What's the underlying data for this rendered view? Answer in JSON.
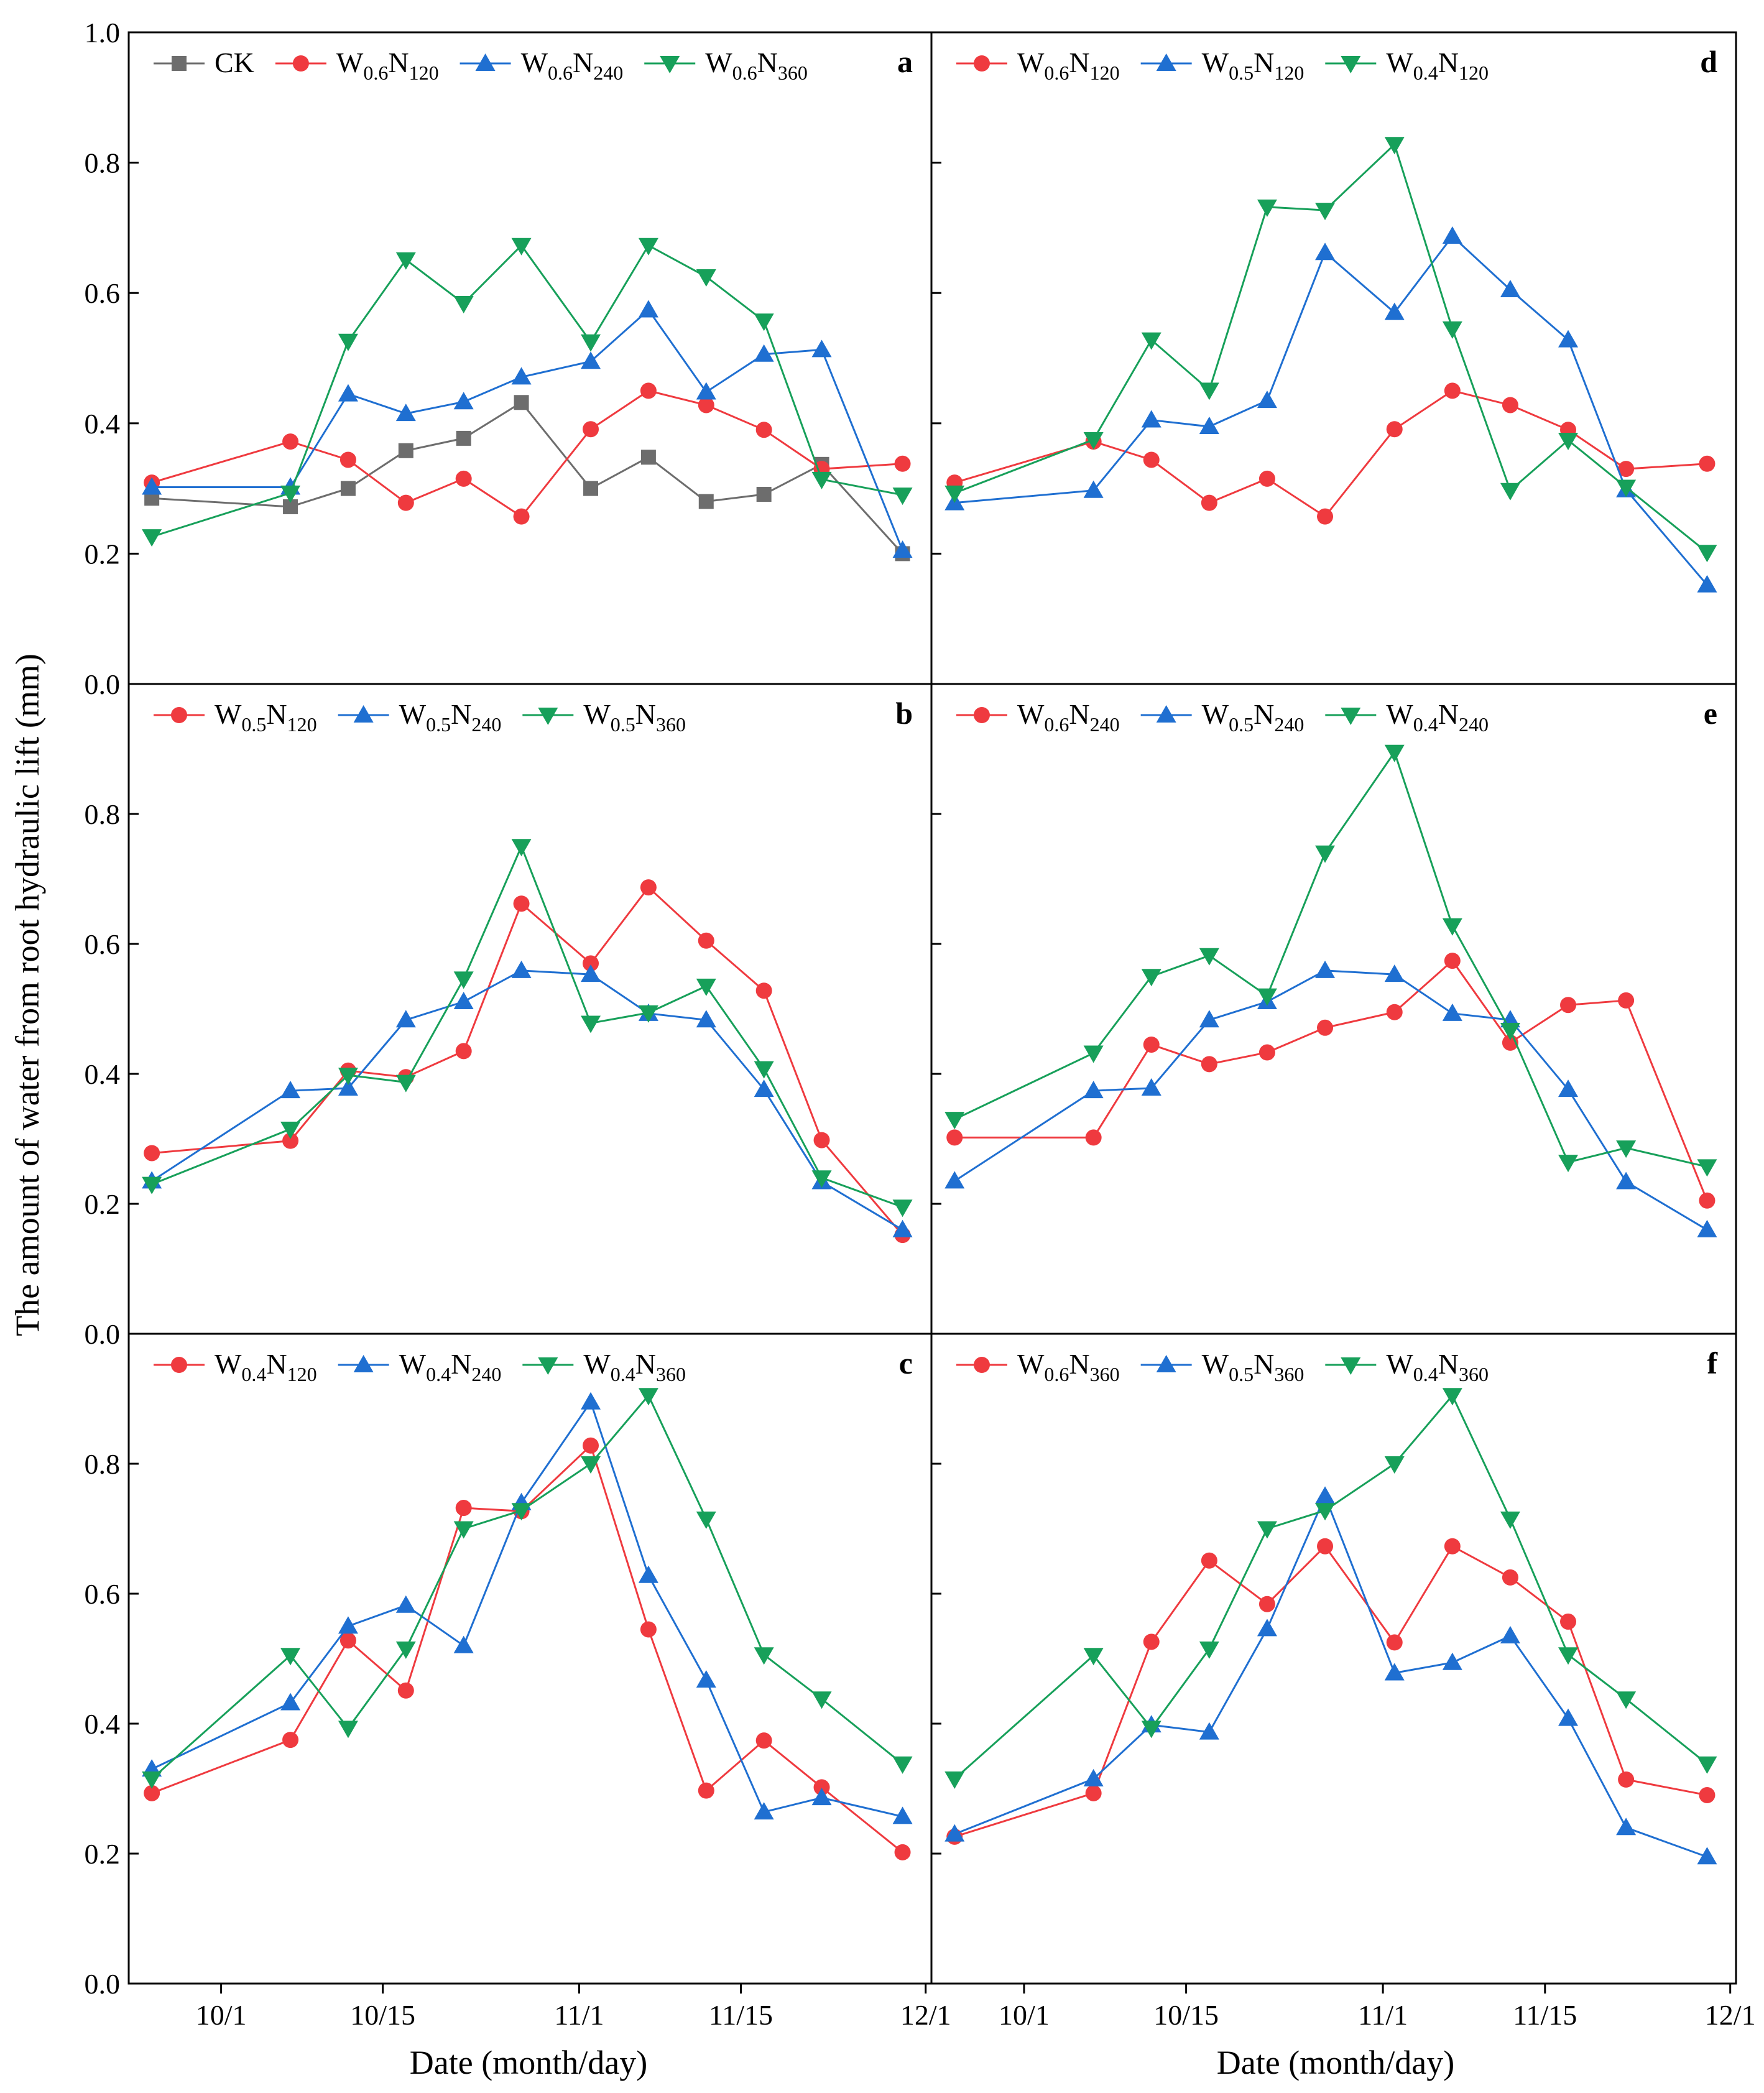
{
  "figure": {
    "ylabel": "The amount of water from root hydraulic lift (mm)",
    "xlabel": "Date (month/day)",
    "y_ticks": [
      "0.0",
      "0.2",
      "0.4",
      "0.6",
      "0.8",
      "1.0"
    ],
    "x_ticks": [
      {
        "label": "10/1",
        "day": 1
      },
      {
        "label": "10/15",
        "day": 15
      },
      {
        "label": "11/1",
        "day": 32
      },
      {
        "label": "11/15",
        "day": 46
      },
      {
        "label": "12/1",
        "day": 62
      }
    ],
    "x_range": [
      -7,
      62.5
    ],
    "y_range": [
      0,
      1.0
    ],
    "colors": {
      "CK": "#6d6d6d",
      "red": "#ef3a3f",
      "blue": "#1f6fd1",
      "green": "#17a05a"
    }
  },
  "chart_data": [
    {
      "panel": "a",
      "type": "line",
      "x_days": [
        -5,
        7,
        12,
        17,
        22,
        27,
        33,
        38,
        43,
        48,
        53,
        60
      ],
      "series": [
        {
          "name": "CK",
          "label": "CK",
          "marker": "square",
          "color": "#6d6d6d",
          "x_days": [
            -5,
            7,
            12,
            17,
            22,
            27,
            33,
            38,
            43,
            48,
            53,
            60
          ],
          "values": [
            0.285,
            0.272,
            0.3,
            0.358,
            0.377,
            0.432,
            0.3,
            0.348,
            0.28,
            0.291,
            0.337,
            0.2
          ]
        },
        {
          "name": "W0.6N120",
          "label": {
            "base": "W",
            "s1": "0.6",
            "mid": "N",
            "s2": "120"
          },
          "marker": "circle",
          "color": "#ef3a3f",
          "x_days": [
            -5,
            7,
            12,
            17,
            22,
            27,
            33,
            38,
            43,
            48,
            53,
            60
          ],
          "values": [
            0.309,
            0.372,
            0.344,
            0.278,
            0.315,
            0.257,
            0.391,
            0.45,
            0.428,
            0.39,
            0.33,
            0.338
          ]
        },
        {
          "name": "W0.6N240",
          "label": {
            "base": "W",
            "s1": "0.6",
            "mid": "N",
            "s2": "240"
          },
          "marker": "triangle-up",
          "color": "#1f6fd1",
          "x_days": [
            -5,
            7,
            12,
            17,
            22,
            27,
            33,
            38,
            43,
            48,
            53,
            60
          ],
          "values": [
            0.302,
            0.302,
            0.445,
            0.415,
            0.433,
            0.471,
            0.495,
            0.574,
            0.448,
            0.506,
            0.513,
            0.205
          ]
        },
        {
          "name": "W0.6N360",
          "label": {
            "base": "W",
            "s1": "0.6",
            "mid": "N",
            "s2": "360"
          },
          "marker": "triangle-down",
          "color": "#17a05a",
          "x_days": [
            -5,
            7,
            12,
            17,
            22,
            27,
            33,
            38,
            43,
            48,
            53,
            60
          ],
          "values": [
            0.226,
            0.293,
            0.526,
            0.651,
            0.584,
            0.673,
            0.525,
            0.673,
            0.625,
            0.557,
            0.314,
            0.29
          ]
        }
      ]
    },
    {
      "panel": "b",
      "type": "line",
      "series": [
        {
          "name": "W0.5N120",
          "label": {
            "base": "W",
            "s1": "0.5",
            "mid": "N",
            "s2": "120"
          },
          "marker": "circle",
          "color": "#ef3a3f",
          "x_days": [
            -5,
            7,
            12,
            17,
            22,
            27,
            33,
            38,
            43,
            48,
            53,
            60
          ],
          "values": [
            0.278,
            0.297,
            0.405,
            0.395,
            0.435,
            0.662,
            0.57,
            0.687,
            0.605,
            0.528,
            0.298,
            0.152
          ]
        },
        {
          "name": "W0.5N240",
          "label": {
            "base": "W",
            "s1": "0.5",
            "mid": "N",
            "s2": "240"
          },
          "marker": "triangle-up",
          "color": "#1f6fd1",
          "x_days": [
            -5,
            7,
            12,
            17,
            22,
            27,
            33,
            38,
            43,
            48,
            53,
            60
          ],
          "values": [
            0.235,
            0.374,
            0.378,
            0.483,
            0.511,
            0.559,
            0.553,
            0.493,
            0.483,
            0.376,
            0.234,
            0.16
          ]
        },
        {
          "name": "W0.5N360",
          "label": {
            "base": "W",
            "s1": "0.5",
            "mid": "N",
            "s2": "360"
          },
          "marker": "triangle-down",
          "color": "#17a05a",
          "x_days": [
            -5,
            7,
            12,
            17,
            22,
            27,
            33,
            38,
            43,
            48,
            53,
            60
          ],
          "values": [
            0.23,
            0.315,
            0.398,
            0.387,
            0.546,
            0.75,
            0.478,
            0.494,
            0.535,
            0.408,
            0.24,
            0.195
          ]
        }
      ]
    },
    {
      "panel": "c",
      "type": "line",
      "series": [
        {
          "name": "W0.4N120",
          "label": {
            "base": "W",
            "s1": "0.4",
            "mid": "N",
            "s2": "120"
          },
          "marker": "circle",
          "color": "#ef3a3f",
          "x_days": [
            -5,
            7,
            12,
            17,
            22,
            27,
            33,
            38,
            43,
            48,
            53,
            60
          ],
          "values": [
            0.293,
            0.375,
            0.528,
            0.451,
            0.732,
            0.727,
            0.828,
            0.545,
            0.297,
            0.374,
            0.302,
            0.202
          ]
        },
        {
          "name": "W0.4N240",
          "label": {
            "base": "W",
            "s1": "0.4",
            "mid": "N",
            "s2": "240"
          },
          "marker": "triangle-up",
          "color": "#1f6fd1",
          "x_days": [
            -5,
            7,
            12,
            17,
            22,
            27,
            33,
            38,
            43,
            48,
            53,
            60
          ],
          "values": [
            0.33,
            0.432,
            0.55,
            0.582,
            0.52,
            0.74,
            0.895,
            0.628,
            0.467,
            0.264,
            0.286,
            0.257
          ]
        },
        {
          "name": "W0.4N360",
          "label": {
            "base": "W",
            "s1": "0.4",
            "mid": "N",
            "s2": "360"
          },
          "marker": "triangle-down",
          "color": "#17a05a",
          "x_days": [
            -5,
            7,
            12,
            17,
            22,
            27,
            33,
            38,
            43,
            48,
            53,
            60
          ],
          "values": [
            0.315,
            0.505,
            0.393,
            0.515,
            0.7,
            0.728,
            0.8,
            0.905,
            0.715,
            0.506,
            0.438,
            0.338
          ]
        }
      ]
    },
    {
      "panel": "d",
      "type": "line",
      "series": [
        {
          "name": "W0.6N120",
          "label": {
            "base": "W",
            "s1": "0.6",
            "mid": "N",
            "s2": "120"
          },
          "marker": "circle",
          "color": "#ef3a3f",
          "x_days": [
            -5,
            7,
            12,
            17,
            22,
            27,
            33,
            38,
            43,
            48,
            53,
            60
          ],
          "values": [
            0.309,
            0.372,
            0.344,
            0.278,
            0.315,
            0.257,
            0.391,
            0.45,
            0.428,
            0.39,
            0.33,
            0.338
          ]
        },
        {
          "name": "W0.5N120",
          "label": {
            "base": "W",
            "s1": "0.5",
            "mid": "N",
            "s2": "120"
          },
          "marker": "triangle-up",
          "color": "#1f6fd1",
          "x_days": [
            -5,
            7,
            12,
            17,
            22,
            27,
            33,
            38,
            43,
            48,
            53,
            60
          ],
          "values": [
            0.278,
            0.297,
            0.405,
            0.395,
            0.435,
            0.662,
            0.57,
            0.687,
            0.605,
            0.528,
            0.298,
            0.152
          ]
        },
        {
          "name": "W0.4N120",
          "label": {
            "base": "W",
            "s1": "0.4",
            "mid": "N",
            "s2": "120"
          },
          "marker": "triangle-down",
          "color": "#17a05a",
          "x_days": [
            -5,
            7,
            12,
            17,
            22,
            27,
            33,
            38,
            43,
            48,
            53,
            60
          ],
          "values": [
            0.293,
            0.375,
            0.528,
            0.451,
            0.732,
            0.727,
            0.828,
            0.545,
            0.297,
            0.374,
            0.302,
            0.202
          ]
        }
      ]
    },
    {
      "panel": "e",
      "type": "line",
      "series": [
        {
          "name": "W0.6N240",
          "label": {
            "base": "W",
            "s1": "0.6",
            "mid": "N",
            "s2": "240"
          },
          "marker": "circle",
          "color": "#ef3a3f",
          "x_days": [
            -5,
            7,
            12,
            17,
            22,
            27,
            33,
            38,
            43,
            48,
            53,
            60
          ],
          "values": [
            0.302,
            0.302,
            0.445,
            0.415,
            0.433,
            0.471,
            0.495,
            0.574,
            0.448,
            0.506,
            0.513,
            0.205
          ]
        },
        {
          "name": "W0.5N240",
          "label": {
            "base": "W",
            "s1": "0.5",
            "mid": "N",
            "s2": "240"
          },
          "marker": "triangle-up",
          "color": "#1f6fd1",
          "x_days": [
            -5,
            7,
            12,
            17,
            22,
            27,
            33,
            38,
            43,
            48,
            53,
            60
          ],
          "values": [
            0.235,
            0.374,
            0.378,
            0.483,
            0.511,
            0.559,
            0.553,
            0.493,
            0.483,
            0.376,
            0.234,
            0.16
          ]
        },
        {
          "name": "W0.4N240",
          "label": {
            "base": "W",
            "s1": "0.4",
            "mid": "N",
            "s2": "240"
          },
          "marker": "triangle-down",
          "color": "#17a05a",
          "x_days": [
            -5,
            7,
            12,
            17,
            22,
            27,
            33,
            38,
            43,
            48,
            53,
            60
          ],
          "values": [
            0.33,
            0.432,
            0.55,
            0.582,
            0.52,
            0.74,
            0.895,
            0.628,
            0.467,
            0.264,
            0.286,
            0.257
          ]
        }
      ]
    },
    {
      "panel": "f",
      "type": "line",
      "series": [
        {
          "name": "W0.6N360",
          "label": {
            "base": "W",
            "s1": "0.6",
            "mid": "N",
            "s2": "360"
          },
          "marker": "circle",
          "color": "#ef3a3f",
          "x_days": [
            -5,
            7,
            12,
            17,
            22,
            27,
            33,
            38,
            43,
            48,
            53,
            60
          ],
          "values": [
            0.226,
            0.293,
            0.526,
            0.651,
            0.584,
            0.673,
            0.525,
            0.673,
            0.625,
            0.557,
            0.314,
            0.29
          ]
        },
        {
          "name": "W0.5N360",
          "label": {
            "base": "W",
            "s1": "0.5",
            "mid": "N",
            "s2": "360"
          },
          "marker": "triangle-up",
          "color": "#1f6fd1",
          "x_days": [
            -5,
            7,
            12,
            17,
            22,
            27,
            33,
            38,
            43,
            48,
            53,
            60
          ],
          "values": [
            0.23,
            0.315,
            0.398,
            0.387,
            0.546,
            0.75,
            0.478,
            0.494,
            0.535,
            0.408,
            0.24,
            0.195
          ]
        },
        {
          "name": "W0.4N360",
          "label": {
            "base": "W",
            "s1": "0.4",
            "mid": "N",
            "s2": "360"
          },
          "marker": "triangle-down",
          "color": "#17a05a",
          "x_days": [
            -5,
            7,
            12,
            17,
            22,
            27,
            33,
            38,
            43,
            48,
            53,
            60
          ],
          "values": [
            0.315,
            0.505,
            0.393,
            0.515,
            0.7,
            0.728,
            0.8,
            0.905,
            0.715,
            0.506,
            0.438,
            0.338
          ]
        }
      ]
    }
  ]
}
